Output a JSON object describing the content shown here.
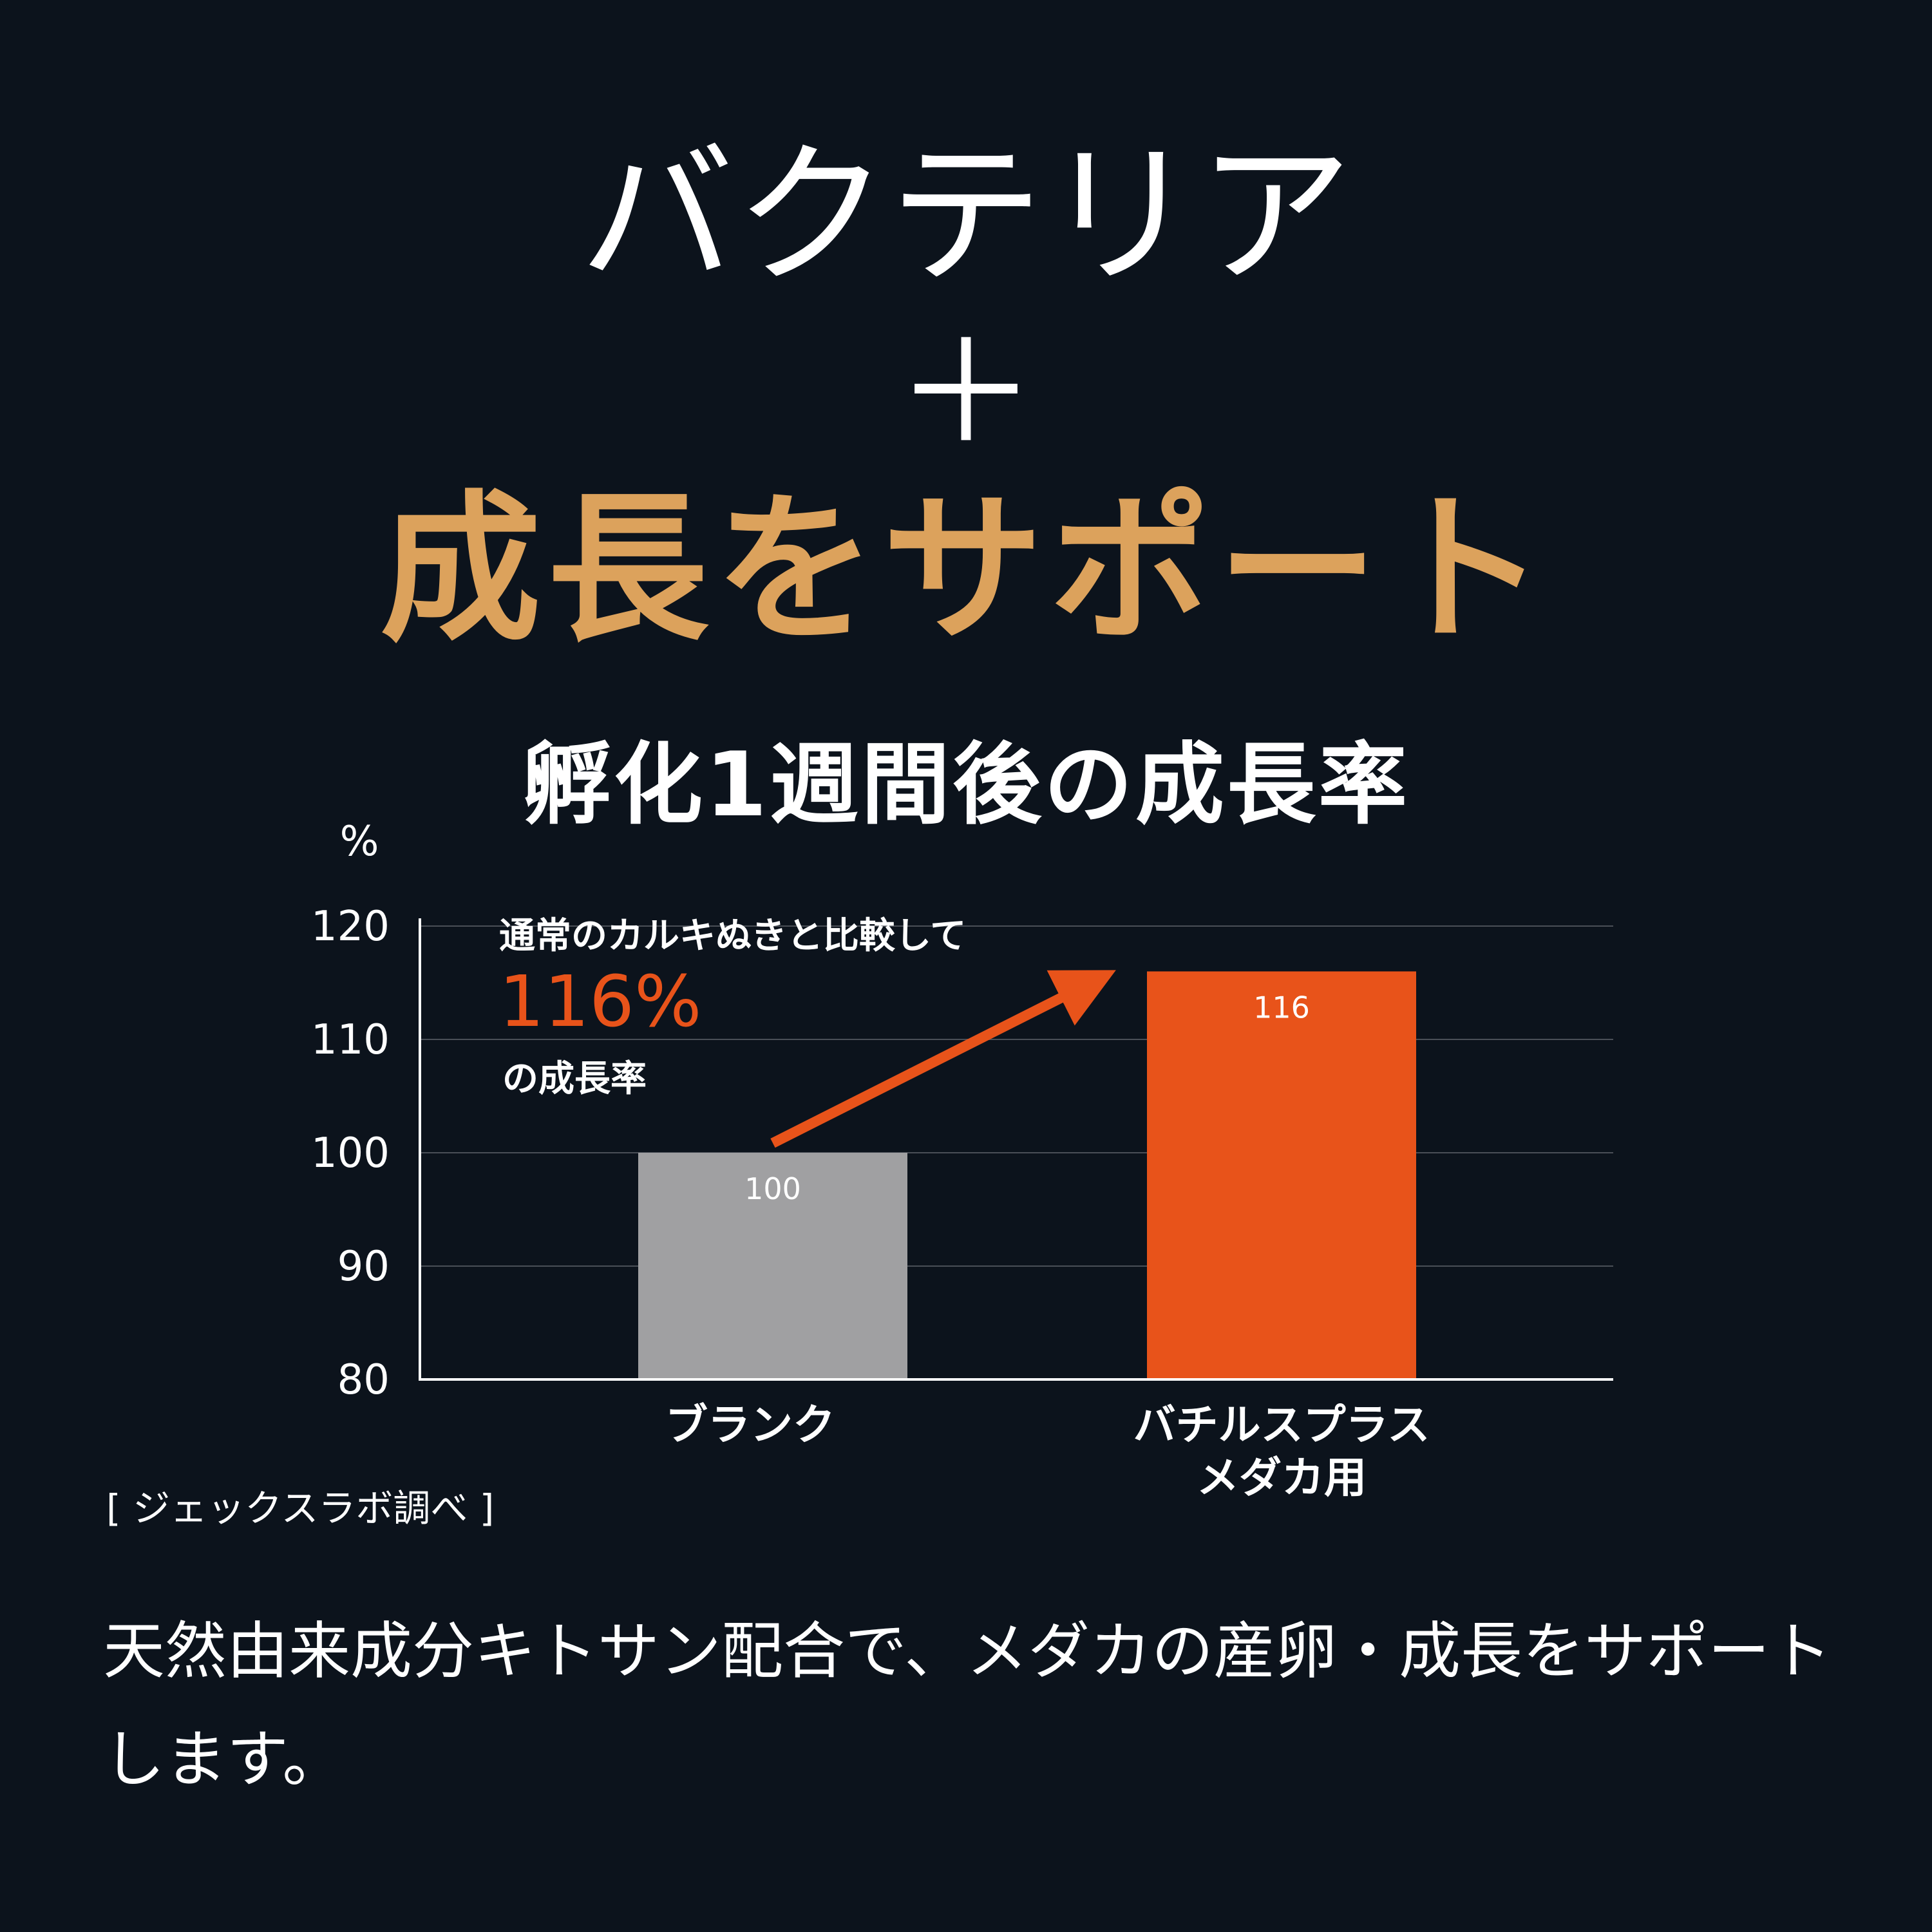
{
  "headline": {
    "line1": "バクテリア",
    "plus": "＋",
    "line2": "成長をサポート"
  },
  "chart_data": {
    "type": "bar",
    "title": "孵化1週間後の成長率",
    "ylabel": "%",
    "xlabel": "",
    "categories": [
      "ブランク",
      "バチルスプラス\nメダカ用"
    ],
    "values": [
      100,
      116
    ],
    "bar_colors": [
      "#a0a0a2",
      "#e8531a"
    ],
    "ylim": [
      80,
      120
    ],
    "yticks": [
      80,
      90,
      100,
      110,
      120
    ],
    "grid": true,
    "annotation": {
      "line1": "通常のカルキぬきと比較して",
      "value": "116%",
      "line3": "の成長率",
      "color": "#e8531a"
    }
  },
  "source": "[ ジェックスラボ調べ ]",
  "footer": "天然由来成分キトサン配合で、メダカの産卵・成長をサポートします。",
  "colors": {
    "background": "#0c131c",
    "accent_gold": "#dca25c",
    "accent_orange": "#e8531a",
    "bar_gray": "#a0a0a2"
  }
}
